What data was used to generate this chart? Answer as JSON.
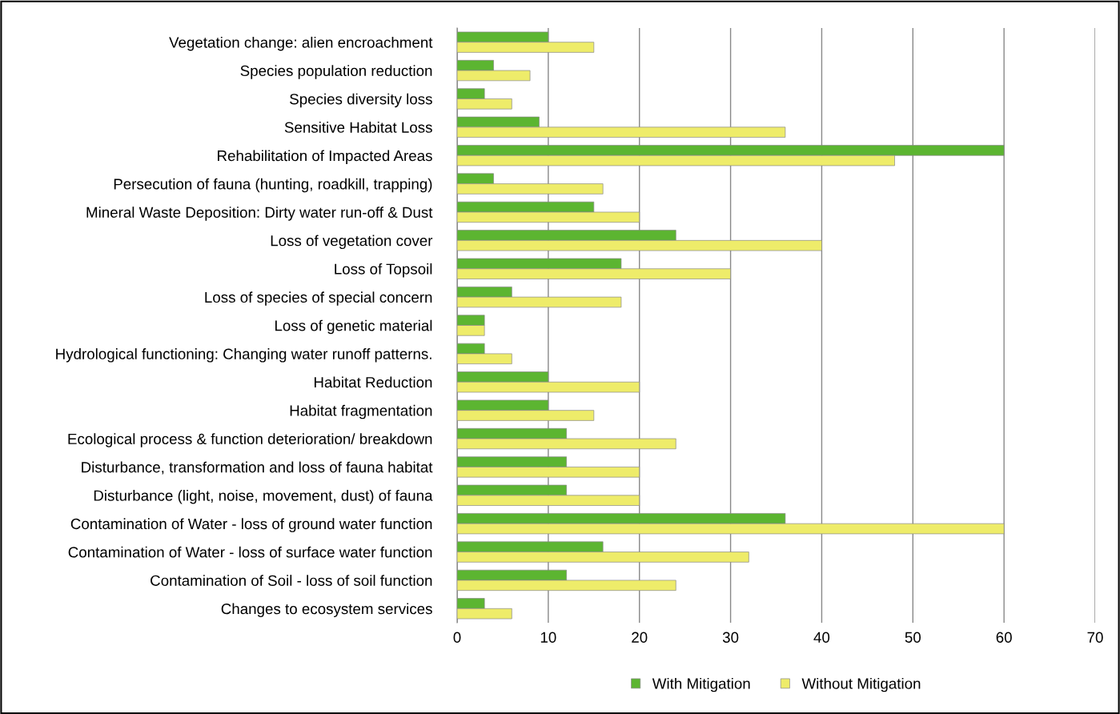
{
  "chart_data": {
    "type": "bar",
    "orientation": "horizontal",
    "categories": [
      "Vegetation change: alien encroachment",
      "Species population reduction",
      "Species diversity loss",
      "Sensitive Habitat Loss",
      "Rehabilitation of Impacted Areas",
      "Persecution of fauna (hunting, roadkill, trapping)",
      "Mineral Waste Deposition: Dirty water run-off & Dust",
      "Loss of vegetation cover",
      "Loss of Topsoil",
      "Loss of species of special concern",
      "Loss of genetic material",
      "Hydrological functioning: Changing water runoff patterns.",
      "Habitat Reduction",
      "Habitat fragmentation",
      "Ecological process & function deterioration/ breakdown",
      "Disturbance, transformation and loss of fauna habitat",
      "Disturbance (light, noise, movement, dust) of fauna",
      "Contamination of Water - loss of ground water function",
      "Contamination of Water - loss of surface water function",
      "Contamination of Soil - loss of soil function",
      "Changes to ecosystem services"
    ],
    "series": [
      {
        "name": "With Mitigation",
        "color": "#5cb531",
        "values": [
          10,
          4,
          3,
          9,
          60,
          4,
          15,
          24,
          18,
          6,
          3,
          3,
          10,
          10,
          12,
          12,
          12,
          36,
          16,
          12,
          3
        ]
      },
      {
        "name": "Without Mitigation",
        "color": "#eeec6a",
        "values": [
          15,
          8,
          6,
          36,
          48,
          16,
          20,
          40,
          30,
          18,
          3,
          6,
          20,
          15,
          24,
          20,
          20,
          60,
          32,
          24,
          6
        ]
      }
    ],
    "xlim": [
      0,
      70
    ],
    "xticks": [
      0,
      10,
      20,
      30,
      40,
      50,
      60,
      70
    ],
    "grid": "x",
    "legend": "bottom"
  }
}
